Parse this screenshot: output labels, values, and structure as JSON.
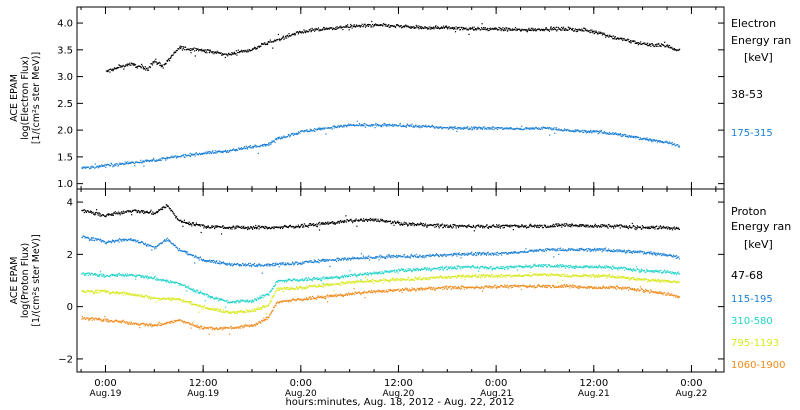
{
  "chart_data": [
    {
      "type": "scatter",
      "ylabel": [
        "ACE EPAM",
        "log(Electron Flux)",
        "[1/(cm²s ster MeV)]"
      ],
      "ylim": [
        0.9,
        4.3
      ],
      "yticks": [
        "1.0",
        "1.5",
        "2.0",
        "2.5",
        "3.0",
        "3.5",
        "4.0"
      ],
      "yticks_values": [
        1.0,
        1.5,
        2.0,
        2.5,
        3.0,
        3.5,
        4.0
      ],
      "xlim_hours": [
        -7,
        152
      ],
      "legend_title": [
        "Electron",
        "Energy ran",
        "[keV]"
      ],
      "series": [
        {
          "name": "38-53",
          "color": "#000000",
          "noise": 0.05,
          "x": [
            0,
            6,
            10,
            12,
            14,
            18,
            24,
            30,
            36,
            42,
            48,
            54,
            60,
            66,
            72,
            78,
            84,
            90,
            96,
            102,
            108,
            114,
            120,
            126,
            132,
            138,
            140,
            141
          ],
          "y": [
            3.1,
            3.25,
            3.15,
            3.3,
            3.2,
            3.55,
            3.5,
            3.42,
            3.52,
            3.7,
            3.85,
            3.9,
            3.95,
            3.97,
            3.95,
            3.92,
            3.93,
            3.9,
            3.9,
            3.88,
            3.9,
            3.9,
            3.85,
            3.72,
            3.62,
            3.58,
            3.52,
            3.5
          ]
        },
        {
          "name": "175-315",
          "color": "#1b7fd4",
          "noise": 0.04,
          "x": [
            -6,
            0,
            6,
            12,
            18,
            24,
            30,
            36,
            40,
            42,
            48,
            54,
            60,
            66,
            72,
            78,
            84,
            90,
            96,
            102,
            108,
            114,
            120,
            126,
            132,
            138,
            141
          ],
          "y": [
            1.3,
            1.35,
            1.4,
            1.45,
            1.52,
            1.58,
            1.62,
            1.7,
            1.75,
            1.85,
            1.98,
            2.05,
            2.1,
            2.1,
            2.1,
            2.08,
            2.05,
            2.05,
            2.05,
            2.03,
            2.05,
            2.0,
            1.98,
            1.93,
            1.85,
            1.78,
            1.72
          ]
        }
      ]
    },
    {
      "type": "scatter",
      "ylabel": [
        "ACE EPAM",
        "log(Proton Flux)",
        "[1/(cm²s ster MeV)]"
      ],
      "ylim": [
        -2.5,
        4.5
      ],
      "yticks": [
        "−2",
        "0",
        "2",
        "4"
      ],
      "yticks_values": [
        -2,
        0,
        2,
        4
      ],
      "xlim_hours": [
        -7,
        152
      ],
      "legend_title": [
        "Proton",
        "Energy ran",
        "[keV]"
      ],
      "series": [
        {
          "name": "47-68",
          "color": "#000000",
          "noise": 0.1,
          "x": [
            -6,
            0,
            6,
            12,
            15,
            18,
            24,
            30,
            36,
            42,
            48,
            54,
            60,
            66,
            72,
            78,
            84,
            90,
            96,
            102,
            108,
            114,
            120,
            126,
            132,
            138,
            141
          ],
          "y": [
            3.7,
            3.5,
            3.7,
            3.6,
            3.9,
            3.3,
            3.1,
            3.05,
            3.05,
            3.05,
            3.1,
            3.2,
            3.3,
            3.35,
            3.2,
            3.15,
            3.1,
            3.1,
            3.1,
            3.1,
            3.1,
            3.15,
            3.1,
            3.1,
            3.05,
            3.05,
            3.0
          ]
        },
        {
          "name": "115-195",
          "color": "#1b7fd4",
          "noise": 0.09,
          "x": [
            -6,
            0,
            6,
            12,
            15,
            18,
            24,
            30,
            36,
            42,
            48,
            54,
            60,
            66,
            72,
            78,
            84,
            90,
            96,
            102,
            108,
            114,
            120,
            126,
            132,
            138,
            141
          ],
          "y": [
            2.7,
            2.5,
            2.6,
            2.3,
            2.6,
            2.2,
            1.8,
            1.65,
            1.6,
            1.65,
            1.7,
            1.8,
            1.85,
            1.9,
            1.95,
            1.95,
            2.0,
            2.05,
            2.05,
            2.1,
            2.2,
            2.2,
            2.2,
            2.15,
            2.1,
            2.0,
            1.9
          ]
        },
        {
          "name": "310-580",
          "color": "#22d3c8",
          "noise": 0.09,
          "x": [
            -6,
            0,
            6,
            12,
            18,
            24,
            30,
            36,
            40,
            42,
            48,
            54,
            60,
            66,
            72,
            78,
            84,
            90,
            96,
            102,
            108,
            114,
            120,
            126,
            132,
            138,
            141
          ],
          "y": [
            1.3,
            1.2,
            1.25,
            1.1,
            0.9,
            0.5,
            0.2,
            0.25,
            0.5,
            1.0,
            1.05,
            1.1,
            1.2,
            1.3,
            1.4,
            1.45,
            1.5,
            1.55,
            1.5,
            1.55,
            1.6,
            1.55,
            1.55,
            1.5,
            1.4,
            1.35,
            1.3
          ]
        },
        {
          "name": "795-1193",
          "color": "#d7e81d",
          "noise": 0.09,
          "x": [
            -6,
            0,
            6,
            12,
            18,
            24,
            30,
            36,
            40,
            42,
            48,
            54,
            60,
            66,
            72,
            78,
            84,
            90,
            96,
            102,
            108,
            114,
            120,
            126,
            132,
            138,
            141
          ],
          "y": [
            0.6,
            0.6,
            0.5,
            0.35,
            0.3,
            0.0,
            -0.2,
            -0.15,
            0.1,
            0.7,
            0.75,
            0.85,
            0.95,
            1.0,
            1.05,
            1.1,
            1.15,
            1.2,
            1.2,
            1.2,
            1.25,
            1.2,
            1.2,
            1.15,
            1.05,
            1.0,
            0.95
          ]
        },
        {
          "name": "1060-1900",
          "color": "#f08a1c",
          "noise": 0.09,
          "x": [
            -6,
            0,
            6,
            12,
            18,
            24,
            30,
            36,
            40,
            42,
            48,
            54,
            60,
            66,
            72,
            78,
            84,
            90,
            96,
            102,
            108,
            114,
            120,
            126,
            132,
            138,
            141
          ],
          "y": [
            -0.4,
            -0.5,
            -0.6,
            -0.7,
            -0.5,
            -0.8,
            -0.8,
            -0.7,
            -0.4,
            0.2,
            0.3,
            0.4,
            0.5,
            0.6,
            0.65,
            0.7,
            0.75,
            0.75,
            0.8,
            0.8,
            0.8,
            0.8,
            0.75,
            0.75,
            0.65,
            0.5,
            0.4
          ]
        }
      ]
    }
  ],
  "x_axis": {
    "ticks": [
      {
        "time": "0:00",
        "date": "Aug.19",
        "hour": 0
      },
      {
        "time": "12:00",
        "date": "Aug.19",
        "hour": 12
      },
      {
        "time": "0:00",
        "date": "Aug.20",
        "hour": 24
      },
      {
        "time": "12:00",
        "date": "Aug.20",
        "hour": 36
      },
      {
        "time": "0:00",
        "date": "Aug.21",
        "hour": 48
      },
      {
        "time": "12:00",
        "date": "Aug.21",
        "hour": 60
      },
      {
        "time": "0:00",
        "date": "Aug.22",
        "hour": 72
      }
    ],
    "label": "hours:minutes, Aug. 18, 2012 - Aug. 22, 2012"
  },
  "x_tick_hours_scale": 2
}
